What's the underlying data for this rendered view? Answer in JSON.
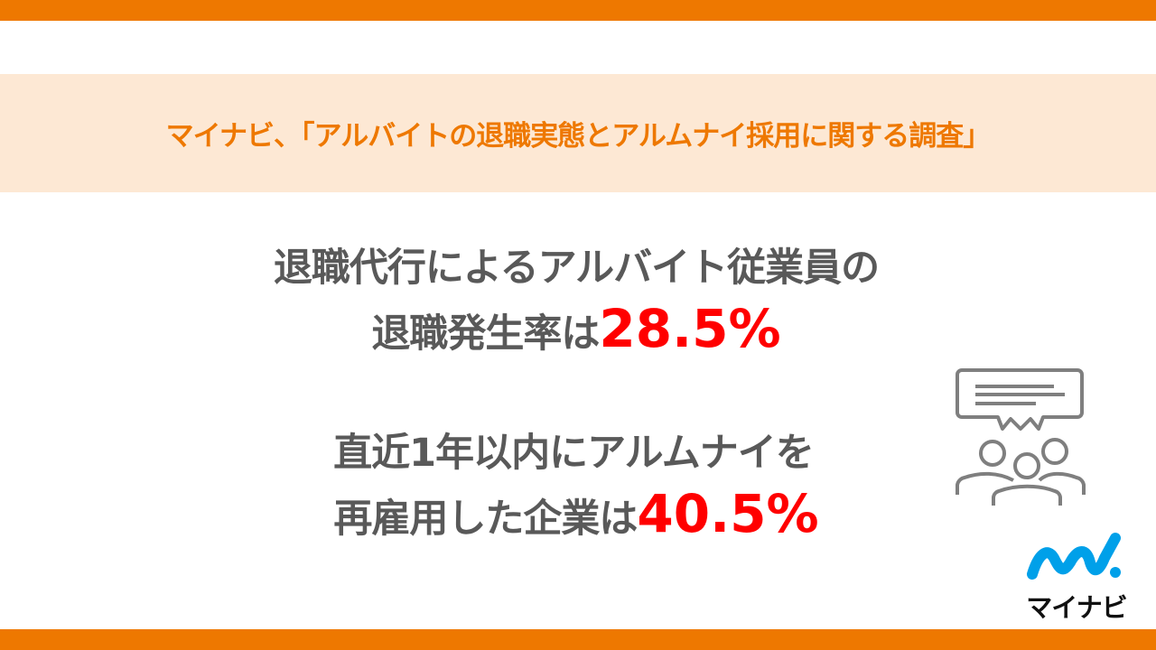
{
  "header": {
    "title": "マイナビ、「アルバイトの退職実態とアルムナイ採用に関する調査」"
  },
  "main": {
    "line1": "退職代行によるアルバイト従業員の",
    "line2_prefix": "退職発生率は",
    "line2_value": "28.5%",
    "line3": "直近1年以内にアルムナイを",
    "line4_prefix": "再雇用した企業は",
    "line4_value": "40.5%"
  },
  "logo": {
    "text": "マイナビ"
  },
  "colors": {
    "brand_orange": "#ee7800",
    "band": "#fde8d4",
    "text_gray": "#595959",
    "highlight_red": "#ff0000",
    "logo_blue": "#00a0e9"
  },
  "icons": [
    "speech-bubble-icon",
    "people-group-icon"
  ]
}
